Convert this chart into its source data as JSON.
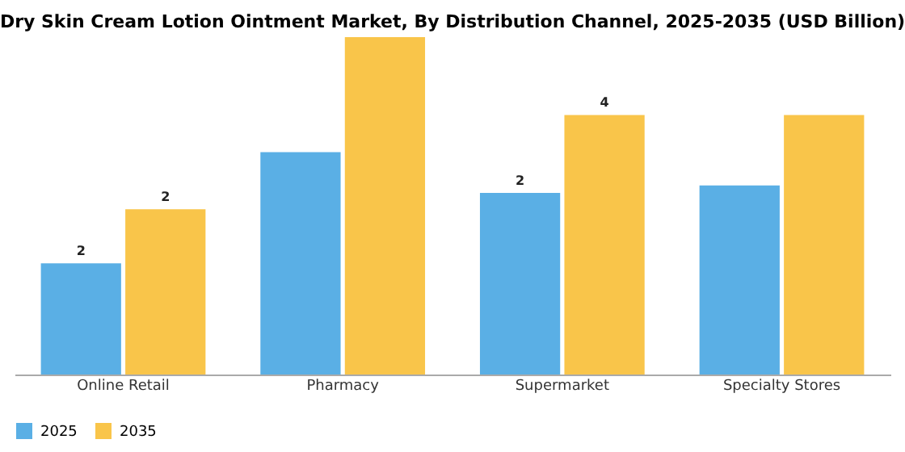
{
  "chart_data": {
    "type": "bar",
    "title": "Dry Skin Cream Lotion Ointment Market, By Distribution Channel, 2025-2035 (USD Billion)",
    "categories": [
      "Online Retail",
      "Pharmacy",
      "Supermarket",
      "Specialty Stores"
    ],
    "tick_labels": "x",
    "legend": "bottom",
    "grid": false,
    "series": [
      {
        "name": "2025",
        "color": "#5aafe5",
        "values": [
          1.5,
          3.0,
          2.45,
          2.55
        ],
        "value_labels": [
          "2",
          null,
          "2",
          null
        ]
      },
      {
        "name": "2035",
        "color": "#f9c54a",
        "values": [
          2.23,
          4.55,
          3.5,
          3.5
        ],
        "value_labels": [
          "2",
          null,
          "4",
          null
        ]
      }
    ]
  }
}
